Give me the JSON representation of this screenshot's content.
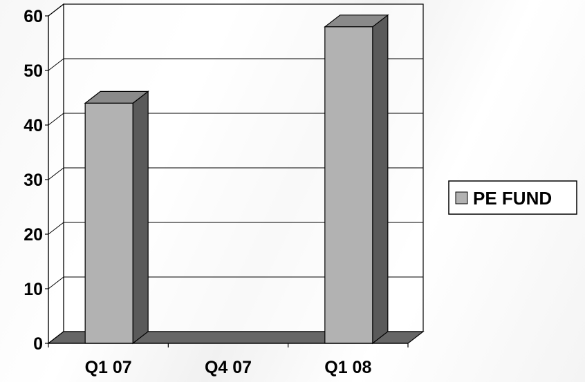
{
  "chart_data": {
    "type": "bar",
    "style": "3d-column",
    "categories": [
      "Q1 07",
      "Q4 07",
      "Q1 08"
    ],
    "series": [
      {
        "name": "PE FUND",
        "values": [
          44,
          0,
          58
        ]
      }
    ],
    "ylim": [
      0,
      60
    ],
    "yticks": [
      "0",
      "10",
      "20",
      "30",
      "40",
      "50",
      "60"
    ],
    "grid": true,
    "legend": "right",
    "colors": {
      "bar_front": "#b2b2b2",
      "bar_side": "#5a5a5a",
      "bar_top": "#8a8a8a",
      "floor": "#666666"
    }
  }
}
